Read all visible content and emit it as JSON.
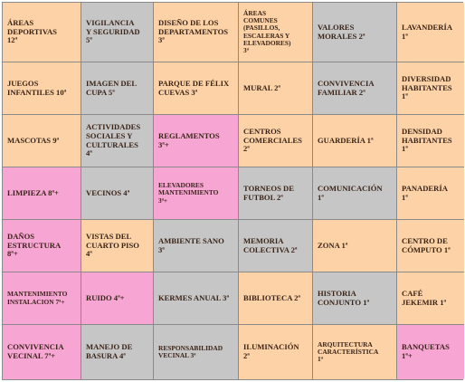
{
  "colors": {
    "orange": "#fcd2a6",
    "gray": "#c6c6c6",
    "pink": "#f7a6d3"
  },
  "rows": [
    [
      {
        "text": "ÁREAS\nDEPORTIVAS\n12ª",
        "color": "orange"
      },
      {
        "text": "VIGILANCIA\nY SEGURIDAD\n5ª",
        "color": "gray"
      },
      {
        "text": "DISEÑO DE LOS\nDEPARTAMENTOS\n3ª",
        "color": "orange"
      },
      {
        "text": "ÁREAS\nCOMUNES\n(PASILLOS,\nESCALERAS Y\nELEVADORES)\n3ª",
        "color": "orange",
        "small": true
      },
      {
        "text": "VALORES\nMORALES 2ª",
        "color": "gray"
      },
      {
        "text": "LAVANDERÍA\n1ª",
        "color": "orange"
      }
    ],
    [
      {
        "text": "JUEGOS\nINFANTILES 10ª",
        "color": "orange"
      },
      {
        "text": "IMAGEN DEL\nCUPA 5ª",
        "color": "gray"
      },
      {
        "text": "PARQUE DE FÉLIX\nCUEVAS 3ª",
        "color": "orange"
      },
      {
        "text": "MURAL 2ª",
        "color": "orange"
      },
      {
        "text": "CONVIVENCIA\nFAMILIAR 2ª",
        "color": "gray"
      },
      {
        "text": "DIVERSIDAD\nHABITANTES\n1ª",
        "color": "orange"
      }
    ],
    [
      {
        "text": "MASCOTAS 9ª",
        "color": "orange"
      },
      {
        "text": "ACTIVIDADES\nSOCIALES Y\nCULTURALES\n4ª",
        "color": "gray"
      },
      {
        "text": "REGLAMENTOS\n3ª+",
        "color": "pink"
      },
      {
        "text": "CENTROS\nCOMERCIALES\n2ª",
        "color": "orange"
      },
      {
        "text": "GUARDERÍA 1ª",
        "color": "orange"
      },
      {
        "text": "DENSIDAD\nHABITANTES\n1ª",
        "color": "orange"
      }
    ],
    [
      {
        "text": "LIMPIEZA 8ª+",
        "color": "pink"
      },
      {
        "text": "VECINOS 4ª",
        "color": "gray"
      },
      {
        "text": "ELEVADORES\nMANTENIMIENTO\n3ª+",
        "color": "pink",
        "small": true
      },
      {
        "text": "TORNEOS DE\nFUTBOL 2ª",
        "color": "gray"
      },
      {
        "text": "COMUNICACIÓN\n1ª",
        "color": "gray"
      },
      {
        "text": "PANADERÍA\n1ª",
        "color": "orange"
      }
    ],
    [
      {
        "text": "DAÑOS\nESTRUCTURA\n8ª+",
        "color": "pink"
      },
      {
        "text": "VISTAS DEL\nCUARTO PISO\n4ª",
        "color": "orange"
      },
      {
        "text": "AMBIENTE SANO\n3ª",
        "color": "gray"
      },
      {
        "text": "MEMORIA\nCOLECTIVA 2ª",
        "color": "gray"
      },
      {
        "text": "ZONA 1ª",
        "color": "orange"
      },
      {
        "text": "CENTRO DE\nCÓMPUTO 1ª",
        "color": "orange"
      }
    ],
    [
      {
        "text": "MANTENIMIENTO\nINSTALACION 7ª+",
        "color": "pink",
        "small": true
      },
      {
        "text": "RUIDO 4ª+",
        "color": "pink"
      },
      {
        "text": "KERMES ANUAL 3ª",
        "color": "gray"
      },
      {
        "text": "BIBLIOTECA 2ª",
        "color": "orange"
      },
      {
        "text": "HISTORIA\nCONJUNTO 1ª",
        "color": "gray"
      },
      {
        "text": "CAFÉ\nJEKEMIR 1ª",
        "color": "orange"
      }
    ],
    [
      {
        "text": "CONVIVENCIA\nVECINAL 7ª+",
        "color": "pink"
      },
      {
        "text": "MANEJO DE\nBASURA 4ª",
        "color": "gray"
      },
      {
        "text": "RESPONSABILIDAD\nVECINAL 3ª",
        "color": "gray",
        "small": true
      },
      {
        "text": "ILUMINACIÓN\n2ª",
        "color": "orange"
      },
      {
        "text": "ARQUITECTURA\nCARACTERÍSTICA\n1ª",
        "color": "orange",
        "small": true
      },
      {
        "text": "BANQUETAS\n1ª+",
        "color": "pink"
      }
    ]
  ]
}
